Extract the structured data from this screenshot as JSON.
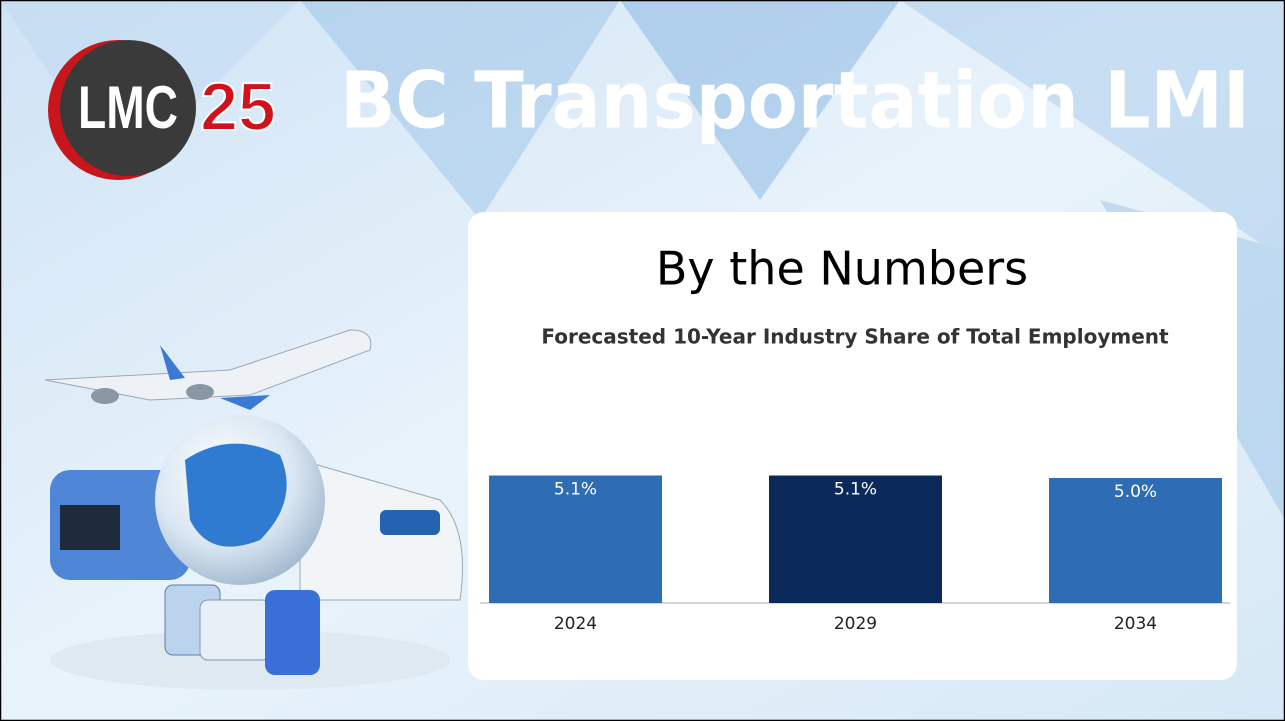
{
  "header": {
    "logo": [
      "LMC",
      "25"
    ],
    "title": "BC Transportation LMI"
  },
  "card": {
    "heading": "By the Numbers"
  },
  "chart_data": {
    "type": "bar",
    "title": "Forecasted 10-Year Industry Share of Total Employment",
    "categories": [
      "2024",
      "2029",
      "2034"
    ],
    "values": [
      5.1,
      5.1,
      5.0
    ],
    "value_labels": [
      "5.1%",
      "5.1%",
      "5.0%"
    ],
    "colors": [
      "#2e6db4",
      "#0b2a5b",
      "#2e6db4"
    ]
  }
}
